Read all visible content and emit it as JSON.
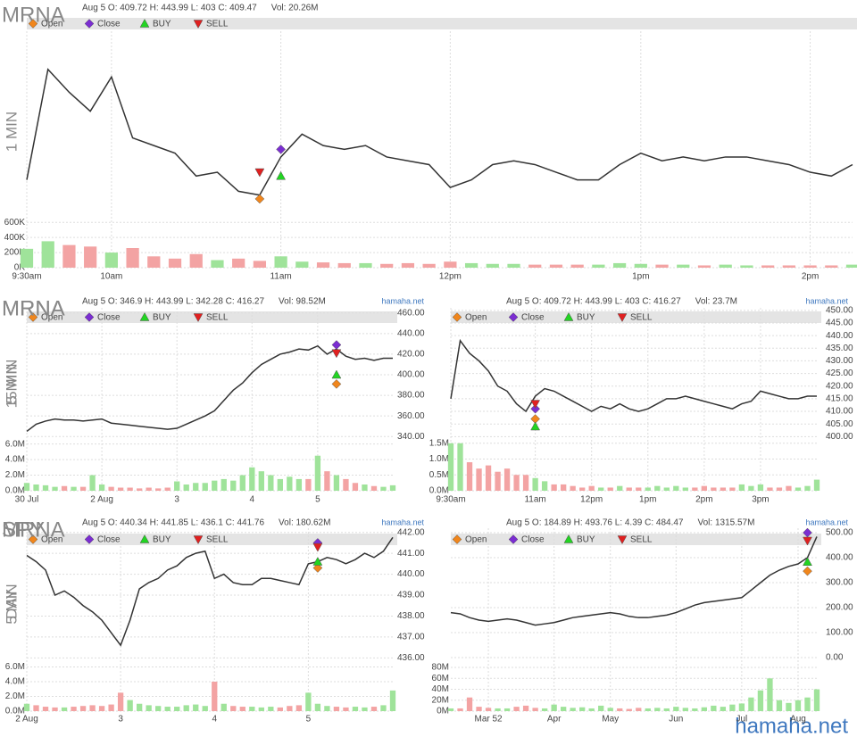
{
  "watermark": "hamaha.net",
  "chart_data": [
    {
      "type": "line",
      "title": "MRNA",
      "info": "Aug 5 O: 409.72 H: 443.99 L: 403 C: 409.47",
      "volume_label": "Vol: 20.26M",
      "ylabel": "1 MIN",
      "categories": [
        "9:30am",
        null,
        null,
        null,
        "10am",
        null,
        null,
        null,
        null,
        null,
        null,
        null,
        "11am",
        null,
        null,
        null,
        null,
        null,
        null,
        null,
        "12pm",
        null,
        null,
        null,
        null,
        null,
        null,
        null,
        null,
        "1pm",
        null,
        null,
        null,
        null,
        null,
        null,
        null,
        "2pm",
        null,
        null
      ],
      "values": [
        409,
        438,
        432,
        427,
        436,
        420,
        418,
        416,
        410,
        411,
        406,
        405,
        415,
        421,
        418,
        417,
        418,
        415,
        414,
        413,
        407,
        409,
        413,
        414,
        413,
        411,
        409,
        409,
        413,
        416,
        414,
        415,
        414,
        415,
        415,
        414,
        413,
        411,
        410,
        413
      ],
      "ylim": [
        400,
        448
      ],
      "volume": {
        "values": [
          250000,
          350000,
          300000,
          280000,
          200000,
          260000,
          150000,
          120000,
          180000,
          100000,
          120000,
          90000,
          150000,
          80000,
          70000,
          60000,
          60000,
          50000,
          60000,
          50000,
          80000,
          60000,
          50000,
          50000,
          40000,
          40000,
          40000,
          40000,
          60000,
          50000,
          40000,
          40000,
          30000,
          40000,
          30000,
          30000,
          30000,
          30000,
          30000,
          40000
        ],
        "ylim": [
          0,
          650000
        ],
        "yticks": [
          {
            "value": 0,
            "label": "0K"
          },
          {
            "value": 200000,
            "label": "200K"
          },
          {
            "value": 400000,
            "label": "400K"
          },
          {
            "value": 600000,
            "label": "600K"
          }
        ]
      },
      "markers": [
        {
          "name": "Open",
          "color": "#f0861d",
          "shape": "diamond",
          "x": 11,
          "value": 404
        },
        {
          "name": "Close",
          "color": "#7b2ed1",
          "shape": "diamond",
          "x": 12,
          "value": 417
        },
        {
          "name": "BUY",
          "color": "#22d422",
          "shape": "up",
          "x": 12,
          "value": 410
        },
        {
          "name": "SELL",
          "color": "#e02020",
          "shape": "down",
          "x": 11,
          "value": 411
        }
      ],
      "line_color": "#333333",
      "up_color": "#9fe39a",
      "down_color": "#f3a3a3",
      "grid": true
    },
    {
      "type": "line",
      "title": "MRNA",
      "info": "Aug 5 O: 346.9 H: 443.99 L: 342.28 C: 416.27",
      "volume_label": "Vol: 98.52M",
      "ylabel": "15 MIN",
      "categories": [
        "30 Jul",
        null,
        null,
        null,
        null,
        null,
        null,
        null,
        "2 Aug",
        null,
        null,
        null,
        null,
        null,
        null,
        null,
        "3",
        null,
        null,
        null,
        null,
        null,
        null,
        null,
        "4",
        null,
        null,
        null,
        null,
        null,
        null,
        "5",
        null,
        null,
        null,
        null,
        null,
        null,
        null,
        null
      ],
      "values": [
        345,
        352,
        355,
        357,
        356,
        356,
        355,
        356,
        357,
        353,
        352,
        351,
        350,
        349,
        348,
        347,
        348,
        352,
        356,
        360,
        365,
        375,
        385,
        392,
        402,
        410,
        415,
        420,
        422,
        425,
        424,
        428,
        420,
        425,
        418,
        415,
        416,
        414,
        416,
        416
      ],
      "ylim": [
        335,
        465
      ],
      "yticks": [
        {
          "value": 340,
          "label": "340.00"
        },
        {
          "value": 360,
          "label": "360.00"
        },
        {
          "value": 380,
          "label": "380.00"
        },
        {
          "value": 400,
          "label": "400.00"
        },
        {
          "value": 420,
          "label": "420.00"
        },
        {
          "value": 440,
          "label": "440.00"
        },
        {
          "value": 460,
          "label": "460.00"
        }
      ],
      "volume": {
        "values": [
          1000000,
          800000,
          700000,
          500000,
          600000,
          500000,
          500000,
          2000000,
          800000,
          500000,
          400000,
          400000,
          300000,
          400000,
          300000,
          400000,
          1200000,
          800000,
          1000000,
          1000000,
          1300000,
          1500000,
          1300000,
          2000000,
          3000000,
          2500000,
          2000000,
          1500000,
          1800000,
          1500000,
          1500000,
          4500000,
          2500000,
          2000000,
          1500000,
          1000000,
          800000,
          600000,
          500000,
          700000
        ],
        "ylim": [
          0,
          6300000
        ],
        "yticks": [
          {
            "value": 0,
            "label": "0.0M"
          },
          {
            "value": 2000000,
            "label": "2.0M"
          },
          {
            "value": 4000000,
            "label": "4.0M"
          },
          {
            "value": 6000000,
            "label": "6.0M"
          }
        ]
      },
      "markers": [
        {
          "name": "Open",
          "color": "#f0861d",
          "shape": "diamond",
          "x": 33,
          "value": 391
        },
        {
          "name": "Close",
          "color": "#7b2ed1",
          "shape": "diamond",
          "x": 33,
          "value": 429
        },
        {
          "name": "BUY",
          "color": "#22d422",
          "shape": "up",
          "x": 33,
          "value": 400
        },
        {
          "name": "SELL",
          "color": "#e02020",
          "shape": "down",
          "x": 33,
          "value": 421
        }
      ],
      "line_color": "#333333",
      "up_color": "#9fe39a",
      "down_color": "#f3a3a3",
      "grid": true
    },
    {
      "type": "line",
      "title": "MRNA",
      "info": "Aug 5 O: 409.72 H: 443.99 L: 403 C: 416.27",
      "volume_label": "Vol: 23.7M",
      "ylabel": "5 MIN",
      "categories": [
        "9:30am",
        null,
        null,
        null,
        null,
        null,
        null,
        null,
        null,
        "11am",
        null,
        null,
        null,
        null,
        null,
        "12pm",
        null,
        null,
        null,
        null,
        null,
        "1pm",
        null,
        null,
        null,
        null,
        null,
        "2pm",
        null,
        null,
        null,
        null,
        null,
        "3pm",
        null,
        null,
        null,
        null,
        null,
        null
      ],
      "values": [
        415,
        438,
        433,
        430,
        426,
        420,
        418,
        413,
        410,
        416,
        419,
        418,
        416,
        414,
        412,
        410,
        412,
        411,
        413,
        411,
        410,
        411,
        413,
        415,
        415,
        416,
        415,
        414,
        413,
        412,
        411,
        413,
        414,
        418,
        417,
        416,
        415,
        415,
        416,
        416
      ],
      "ylim": [
        398,
        451
      ],
      "yticks": [
        {
          "value": 400,
          "label": "400.00"
        },
        {
          "value": 405,
          "label": "405.00"
        },
        {
          "value": 410,
          "label": "410.00"
        },
        {
          "value": 415,
          "label": "415.00"
        },
        {
          "value": 420,
          "label": "420.00"
        },
        {
          "value": 425,
          "label": "425.00"
        },
        {
          "value": 430,
          "label": "430.00"
        },
        {
          "value": 435,
          "label": "435.00"
        },
        {
          "value": 440,
          "label": "440.00"
        },
        {
          "value": 445,
          "label": "445.00"
        },
        {
          "value": 450,
          "label": "450.00"
        }
      ],
      "volume": {
        "values": [
          1500000,
          1500000,
          900000,
          700000,
          800000,
          600000,
          700000,
          500000,
          500000,
          400000,
          300000,
          200000,
          200000,
          150000,
          100000,
          150000,
          100000,
          100000,
          150000,
          100000,
          100000,
          100000,
          150000,
          100000,
          150000,
          100000,
          100000,
          150000,
          100000,
          100000,
          100000,
          200000,
          150000,
          200000,
          100000,
          100000,
          150000,
          100000,
          150000,
          350000
        ],
        "ylim": [
          0,
          1550000
        ],
        "yticks": [
          {
            "value": 0,
            "label": "0.0M"
          },
          {
            "value": 500000,
            "label": "0.5M"
          },
          {
            "value": 1000000,
            "label": "1.0M"
          },
          {
            "value": 1500000,
            "label": "1.5M"
          }
        ]
      },
      "markers": [
        {
          "name": "Open",
          "color": "#f0861d",
          "shape": "diamond",
          "x": 9,
          "value": 407
        },
        {
          "name": "Close",
          "color": "#7b2ed1",
          "shape": "diamond",
          "x": 9,
          "value": 411
        },
        {
          "name": "BUY",
          "color": "#22d422",
          "shape": "up",
          "x": 9,
          "value": 404
        },
        {
          "name": "SELL",
          "color": "#e02020",
          "shape": "down",
          "x": 9,
          "value": 413
        }
      ],
      "line_color": "#333333",
      "up_color": "#9fe39a",
      "down_color": "#f3a3a3",
      "grid": true
    },
    {
      "type": "line",
      "title": "SPY",
      "info": "Aug 5 O: 440.34 H: 441.85 L: 436.1 C: 441.76",
      "volume_label": "Vol: 180.62M",
      "ylabel": "5 MIN",
      "categories": [
        "2 Aug",
        null,
        null,
        null,
        null,
        null,
        null,
        null,
        null,
        null,
        "3",
        null,
        null,
        null,
        null,
        null,
        null,
        null,
        null,
        null,
        "4",
        null,
        null,
        null,
        null,
        null,
        null,
        null,
        null,
        null,
        "5",
        null,
        null,
        null,
        null,
        null,
        null,
        null,
        null,
        null
      ],
      "values": [
        440.9,
        440.6,
        440.2,
        439.0,
        439.2,
        438.9,
        438.5,
        438.2,
        437.8,
        437.2,
        436.6,
        437.8,
        439.3,
        439.6,
        439.8,
        440.2,
        440.4,
        440.8,
        441.0,
        441.1,
        439.8,
        440.0,
        439.6,
        439.5,
        439.5,
        439.8,
        439.8,
        439.7,
        439.6,
        439.5,
        440.5,
        440.6,
        440.8,
        440.7,
        440.5,
        440.7,
        441.0,
        440.8,
        441.1,
        441.76
      ],
      "ylim": [
        435.8,
        442.2
      ],
      "yticks": [
        {
          "value": 436,
          "label": "436.00"
        },
        {
          "value": 437,
          "label": "437.00"
        },
        {
          "value": 438,
          "label": "438.00"
        },
        {
          "value": 439,
          "label": "439.00"
        },
        {
          "value": 440,
          "label": "440.00"
        },
        {
          "value": 441,
          "label": "441.00"
        },
        {
          "value": 442,
          "label": "442.00"
        }
      ],
      "volume": {
        "values": [
          1000000,
          800000,
          600000,
          500000,
          500000,
          600000,
          700000,
          800000,
          700000,
          900000,
          2500000,
          1500000,
          1000000,
          800000,
          700000,
          600000,
          600000,
          800000,
          900000,
          700000,
          4000000,
          1000000,
          700000,
          600000,
          600000,
          500000,
          600000,
          500000,
          700000,
          800000,
          2500000,
          1000000,
          700000,
          600000,
          500000,
          600000,
          500000,
          600000,
          800000,
          2800000
        ],
        "ylim": [
          0,
          6300000
        ],
        "yticks": [
          {
            "value": 0,
            "label": "0.0M"
          },
          {
            "value": 2000000,
            "label": "2.0M"
          },
          {
            "value": 4000000,
            "label": "4.0M"
          },
          {
            "value": 6000000,
            "label": "6.0M"
          }
        ]
      },
      "markers": [
        {
          "name": "Open",
          "color": "#f0861d",
          "shape": "diamond",
          "x": 31,
          "value": 440.3
        },
        {
          "name": "Close",
          "color": "#7b2ed1",
          "shape": "diamond",
          "x": 31,
          "value": 441.5
        },
        {
          "name": "BUY",
          "color": "#22d422",
          "shape": "up",
          "x": 31,
          "value": 440.6
        },
        {
          "name": "SELL",
          "color": "#e02020",
          "shape": "down",
          "x": 31,
          "value": 441.3
        }
      ],
      "line_color": "#333333",
      "up_color": "#9fe39a",
      "down_color": "#f3a3a3",
      "grid": true
    },
    {
      "type": "line",
      "title": "MRNA",
      "info": "Aug 5 O: 184.89 H: 493.76 L: 4.39 C: 484.47",
      "volume_label": "Vol: 1315.57M",
      "ylabel": "DAY",
      "categories": [
        null,
        null,
        null,
        null,
        "Mar 52",
        null,
        null,
        null,
        null,
        null,
        null,
        "Apr",
        null,
        null,
        null,
        null,
        null,
        "May",
        null,
        null,
        null,
        null,
        null,
        null,
        "Jun",
        null,
        null,
        null,
        null,
        null,
        null,
        "Jul",
        null,
        null,
        null,
        null,
        null,
        "Aug",
        null,
        null
      ],
      "values": [
        180,
        175,
        160,
        150,
        145,
        150,
        155,
        150,
        140,
        130,
        135,
        140,
        150,
        160,
        165,
        170,
        175,
        180,
        175,
        165,
        160,
        160,
        165,
        170,
        180,
        195,
        210,
        220,
        225,
        230,
        235,
        240,
        270,
        300,
        330,
        350,
        365,
        375,
        400,
        484.47
      ],
      "ylim": [
        -18,
        518
      ],
      "yticks": [
        {
          "value": 0,
          "label": "0.00"
        },
        {
          "value": 100,
          "label": "100.00"
        },
        {
          "value": 200,
          "label": "200.00"
        },
        {
          "value": 300,
          "label": "300.00"
        },
        {
          "value": 400,
          "label": "400.00"
        },
        {
          "value": 500,
          "label": "500.00"
        }
      ],
      "volume": {
        "values": [
          5000000,
          5000000,
          25000000,
          8000000,
          6000000,
          5000000,
          5000000,
          8000000,
          10000000,
          6000000,
          5000000,
          12000000,
          8000000,
          6000000,
          7000000,
          5000000,
          10000000,
          6000000,
          5000000,
          4000000,
          6000000,
          5000000,
          6000000,
          5000000,
          8000000,
          6000000,
          5000000,
          7000000,
          10000000,
          8000000,
          12000000,
          14000000,
          25000000,
          38000000,
          60000000,
          20000000,
          15000000,
          20000000,
          25000000,
          40000000
        ],
        "ylim": [
          0,
          85000000
        ],
        "yticks": [
          {
            "value": 0,
            "label": "0M"
          },
          {
            "value": 20000000,
            "label": "20M"
          },
          {
            "value": 40000000,
            "label": "40M"
          },
          {
            "value": 60000000,
            "label": "60M"
          },
          {
            "value": 80000000,
            "label": "80M"
          }
        ]
      },
      "markers": [
        {
          "name": "Open",
          "color": "#f0861d",
          "shape": "diamond",
          "x": 38,
          "value": 346
        },
        {
          "name": "Close",
          "color": "#7b2ed1",
          "shape": "diamond",
          "x": 38,
          "value": 500
        },
        {
          "name": "BUY",
          "color": "#22d422",
          "shape": "up",
          "x": 38,
          "value": 383
        },
        {
          "name": "SELL",
          "color": "#e02020",
          "shape": "down",
          "x": 38,
          "value": 468
        }
      ],
      "line_color": "#333333",
      "up_color": "#9fe39a",
      "down_color": "#f3a3a3",
      "grid": true
    }
  ]
}
